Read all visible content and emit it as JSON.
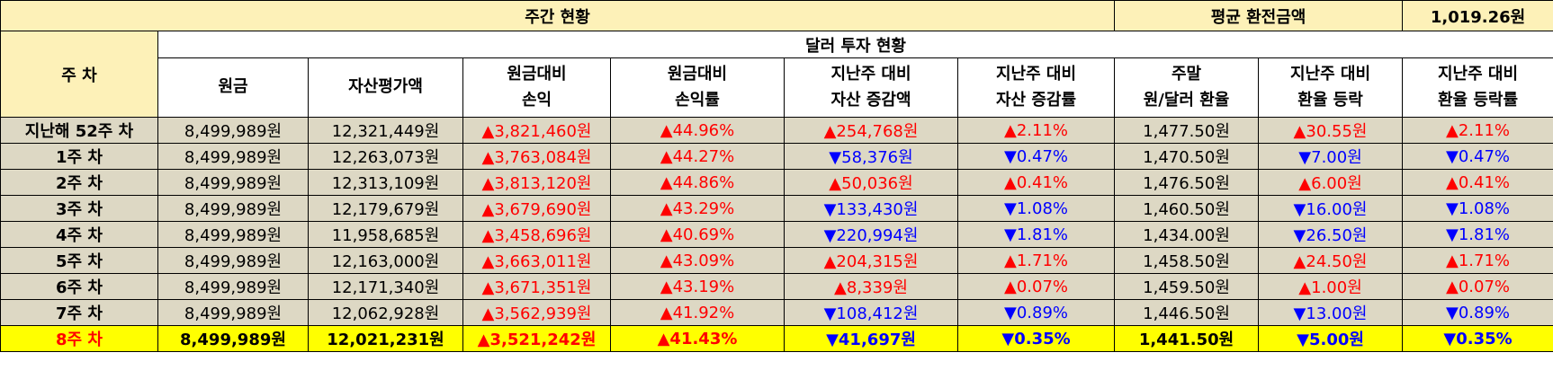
{
  "top_title": "주간 현황",
  "avg_label": "평균 환전금액",
  "avg_value": "1,019.26원",
  "week_header": "주 차",
  "section_title": "달러 투자 현황",
  "columns": [
    [
      "원금"
    ],
    [
      "자산평가액"
    ],
    [
      "원금대비",
      "손익"
    ],
    [
      "원금대비",
      "손익률"
    ],
    [
      "지난주 대비",
      "자산 증감액"
    ],
    [
      "지난주 대비",
      "자산 증감률"
    ],
    [
      "주말",
      "원/달러 환율"
    ],
    [
      "지난주 대비",
      "환율 등락"
    ],
    [
      "지난주 대비",
      "환율 등락률"
    ]
  ],
  "rows": [
    {
      "week": "지난해 52주 차",
      "principal": "8,499,989원",
      "asset": "12,321,449원",
      "pl": "▲3,821,460원",
      "pl_rate": "▲44.96%",
      "asset_diff": "▲254,768원",
      "asset_rate": "▲2.11%",
      "fx": "1,477.50원",
      "fx_diff": "▲30.55원",
      "fx_rate": "▲2.11%"
    },
    {
      "week": "1주 차",
      "principal": "8,499,989원",
      "asset": "12,263,073원",
      "pl": "▲3,763,084원",
      "pl_rate": "▲44.27%",
      "asset_diff": "▼58,376원",
      "asset_rate": "▼0.47%",
      "fx": "1,470.50원",
      "fx_diff": "▼7.00원",
      "fx_rate": "▼0.47%"
    },
    {
      "week": "2주 차",
      "principal": "8,499,989원",
      "asset": "12,313,109원",
      "pl": "▲3,813,120원",
      "pl_rate": "▲44.86%",
      "asset_diff": "▲50,036원",
      "asset_rate": "▲0.41%",
      "fx": "1,476.50원",
      "fx_diff": "▲6.00원",
      "fx_rate": "▲0.41%"
    },
    {
      "week": "3주 차",
      "principal": "8,499,989원",
      "asset": "12,179,679원",
      "pl": "▲3,679,690원",
      "pl_rate": "▲43.29%",
      "asset_diff": "▼133,430원",
      "asset_rate": "▼1.08%",
      "fx": "1,460.50원",
      "fx_diff": "▼16.00원",
      "fx_rate": "▼1.08%"
    },
    {
      "week": "4주 차",
      "principal": "8,499,989원",
      "asset": "11,958,685원",
      "pl": "▲3,458,696원",
      "pl_rate": "▲40.69%",
      "asset_diff": "▼220,994원",
      "asset_rate": "▼1.81%",
      "fx": "1,434.00원",
      "fx_diff": "▼26.50원",
      "fx_rate": "▼1.81%"
    },
    {
      "week": "5주 차",
      "principal": "8,499,989원",
      "asset": "12,163,000원",
      "pl": "▲3,663,011원",
      "pl_rate": "▲43.09%",
      "asset_diff": "▲204,315원",
      "asset_rate": "▲1.71%",
      "fx": "1,458.50원",
      "fx_diff": "▲24.50원",
      "fx_rate": "▲1.71%"
    },
    {
      "week": "6주 차",
      "principal": "8,499,989원",
      "asset": "12,171,340원",
      "pl": "▲3,671,351원",
      "pl_rate": "▲43.19%",
      "asset_diff": "▲8,339원",
      "asset_rate": "▲0.07%",
      "fx": "1,459.50원",
      "fx_diff": "▲1.00원",
      "fx_rate": "▲0.07%"
    },
    {
      "week": "7주 차",
      "principal": "8,499,989원",
      "asset": "12,062,928원",
      "pl": "▲3,562,939원",
      "pl_rate": "▲41.92%",
      "asset_diff": "▼108,412원",
      "asset_rate": "▼0.89%",
      "fx": "1,446.50원",
      "fx_diff": "▼13.00원",
      "fx_rate": "▼0.89%"
    },
    {
      "week": "8주 차",
      "principal": "8,499,989원",
      "asset": "12,021,231원",
      "pl": "▲3,521,242원",
      "pl_rate": "▲41.43%",
      "asset_diff": "▼41,697원",
      "asset_rate": "▼0.35%",
      "fx": "1,441.50원",
      "fx_diff": "▼5.00원",
      "fx_rate": "▼0.35%",
      "highlight": true
    }
  ],
  "colors": {
    "up": "#ff0000",
    "down": "#0000ff",
    "highlight": "#ffff00",
    "header_fill": "#fdf1b8",
    "row_fill": "#ddd8c4"
  }
}
